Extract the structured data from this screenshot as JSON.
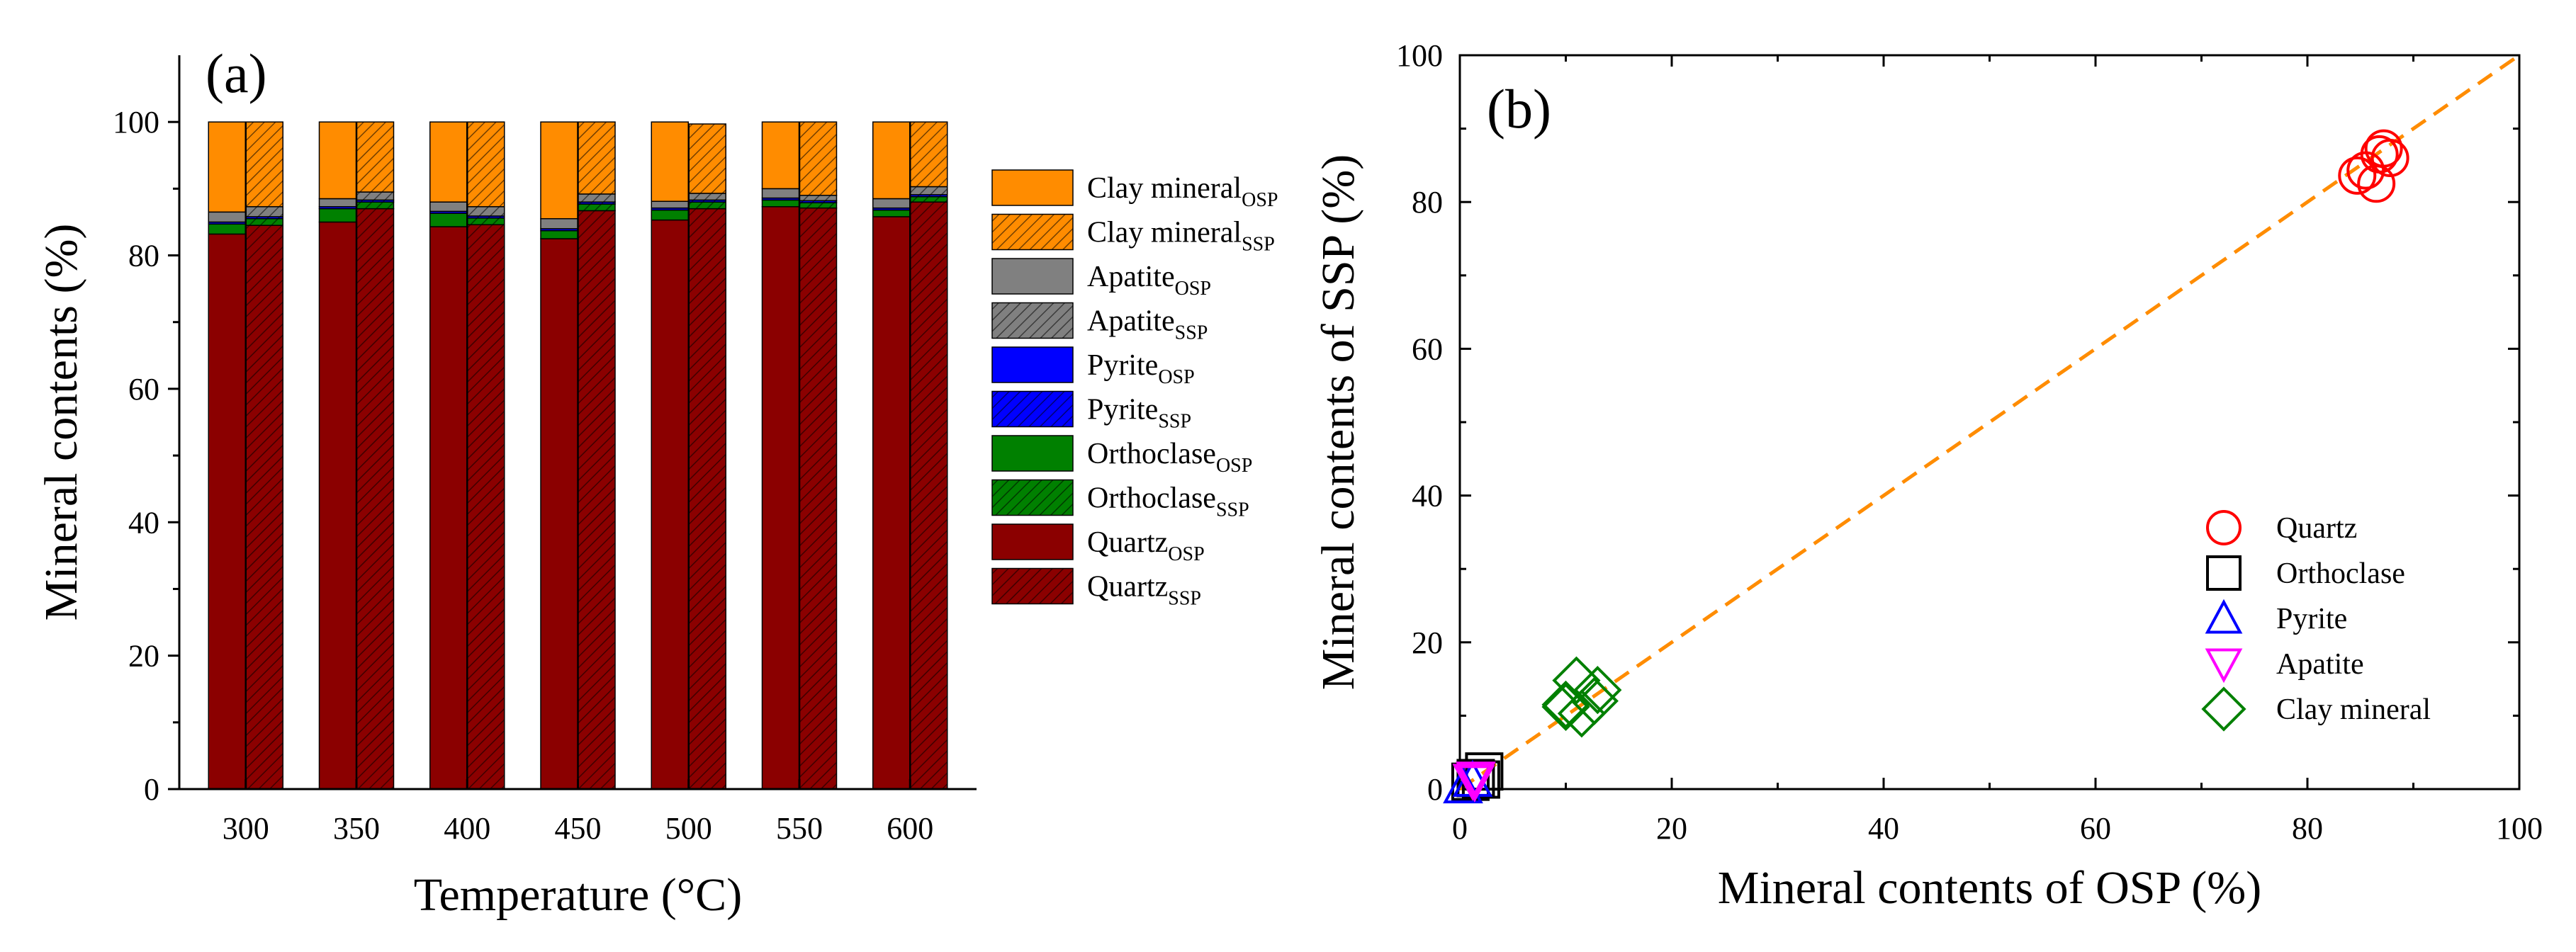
{
  "chart_data": [
    {
      "panel": "(a)",
      "type": "bar",
      "stacked": true,
      "xlabel": "Temperature (°C)",
      "ylabel": "Mineral contents (%)",
      "ylim": [
        0,
        110
      ],
      "yticks": [
        0,
        20,
        40,
        60,
        80,
        100
      ],
      "categories": [
        "300",
        "350",
        "400",
        "450",
        "500",
        "550",
        "600"
      ],
      "groups": [
        {
          "name": "OSP",
          "pattern": "solid"
        },
        {
          "name": "SSP",
          "pattern": "hatched"
        }
      ],
      "series": [
        {
          "name": "Quartz",
          "color": "#8b0000",
          "OSP": [
            83.2,
            85.0,
            84.3,
            82.5,
            85.3,
            87.3,
            85.8
          ],
          "SSP": [
            84.5,
            87.0,
            84.6,
            86.7,
            87.0,
            87.1,
            88.0
          ]
        },
        {
          "name": "Orthoclase",
          "color": "#008000",
          "OSP": [
            1.5,
            2.0,
            2.0,
            1.2,
            1.5,
            1.0,
            1.0
          ],
          "SSP": [
            1.0,
            1.0,
            1.0,
            1.0,
            1.0,
            0.8,
            0.8
          ]
        },
        {
          "name": "Pyrite",
          "color": "#0000ff",
          "OSP": [
            0.3,
            0.3,
            0.3,
            0.3,
            0.3,
            0.3,
            0.3
          ],
          "SSP": [
            0.3,
            0.3,
            0.3,
            0.3,
            0.3,
            0.3,
            0.3
          ]
        },
        {
          "name": "Apatite",
          "color": "#808080",
          "OSP": [
            1.5,
            1.2,
            1.4,
            1.5,
            1.0,
            1.4,
            1.4
          ],
          "SSP": [
            1.5,
            1.2,
            1.4,
            1.2,
            1.0,
            0.8,
            1.2
          ]
        },
        {
          "name": "Clay mineral",
          "color": "#ff8c00",
          "OSP": [
            13.5,
            11.5,
            12.0,
            14.5,
            11.9,
            10.0,
            11.5
          ],
          "SSP": [
            12.7,
            10.5,
            12.7,
            10.8,
            10.4,
            11.0,
            9.7
          ]
        }
      ],
      "legend": [
        {
          "base": "Clay mineral",
          "sub": "OSP"
        },
        {
          "base": "Clay mineral",
          "sub": "SSP"
        },
        {
          "base": "Apatite",
          "sub": "OSP"
        },
        {
          "base": "Apatite",
          "sub": "SSP"
        },
        {
          "base": "Pyrite",
          "sub": "OSP"
        },
        {
          "base": "Pyrite",
          "sub": "SSP"
        },
        {
          "base": "Orthoclase",
          "sub": "OSP"
        },
        {
          "base": "Orthoclase",
          "sub": "SSP"
        },
        {
          "base": "Quartz",
          "sub": "OSP"
        },
        {
          "base": "Quartz",
          "sub": "SSP"
        }
      ],
      "legend_position": "right"
    },
    {
      "panel": "(b)",
      "type": "scatter",
      "xlabel": "Mineral contents of OSP (%)",
      "ylabel": "Mineral contents of SSP (%)",
      "xlim": [
        0,
        100
      ],
      "ylim": [
        0,
        100
      ],
      "xticks": [
        0,
        20,
        40,
        60,
        80,
        100
      ],
      "yticks": [
        0,
        20,
        40,
        60,
        80,
        100
      ],
      "reference_line": {
        "type": "y=x",
        "style": "dashed",
        "color": "#ff8c00"
      },
      "series": [
        {
          "name": "Quartz",
          "marker": "circle",
          "color": "#ff0000",
          "points": [
            [
              84.7,
              83.6
            ],
            [
              85.5,
              84.3
            ],
            [
              86.5,
              82.5
            ],
            [
              86.8,
              86.5
            ],
            [
              87.2,
              87.3
            ],
            [
              87.8,
              86.0
            ]
          ]
        },
        {
          "name": "Orthoclase",
          "marker": "square",
          "color": "#000000",
          "points": [
            [
              1.5,
              1.5
            ],
            [
              2.0,
              1.3
            ],
            [
              1.0,
              1.0
            ],
            [
              2.3,
              2.4
            ]
          ]
        },
        {
          "name": "Pyrite",
          "marker": "triangle-up",
          "color": "#0000ff",
          "points": [
            [
              0.3,
              0.3
            ],
            [
              1.2,
              1.2
            ]
          ]
        },
        {
          "name": "Apatite",
          "marker": "triangle-down",
          "color": "#ff00ff",
          "points": [
            [
              1.5,
              1.5
            ],
            [
              1.2,
              1.2
            ],
            [
              1.4,
              1.0
            ]
          ]
        },
        {
          "name": "Clay mineral",
          "marker": "diamond",
          "color": "#008000",
          "points": [
            [
              11.0,
              14.8
            ],
            [
              13.0,
              13.5
            ],
            [
              12.7,
              12.0
            ],
            [
              10.0,
              11.2
            ],
            [
              11.5,
              10.3
            ],
            [
              10.0,
              11.5
            ]
          ]
        }
      ],
      "legend_position": "bottom-right"
    }
  ]
}
